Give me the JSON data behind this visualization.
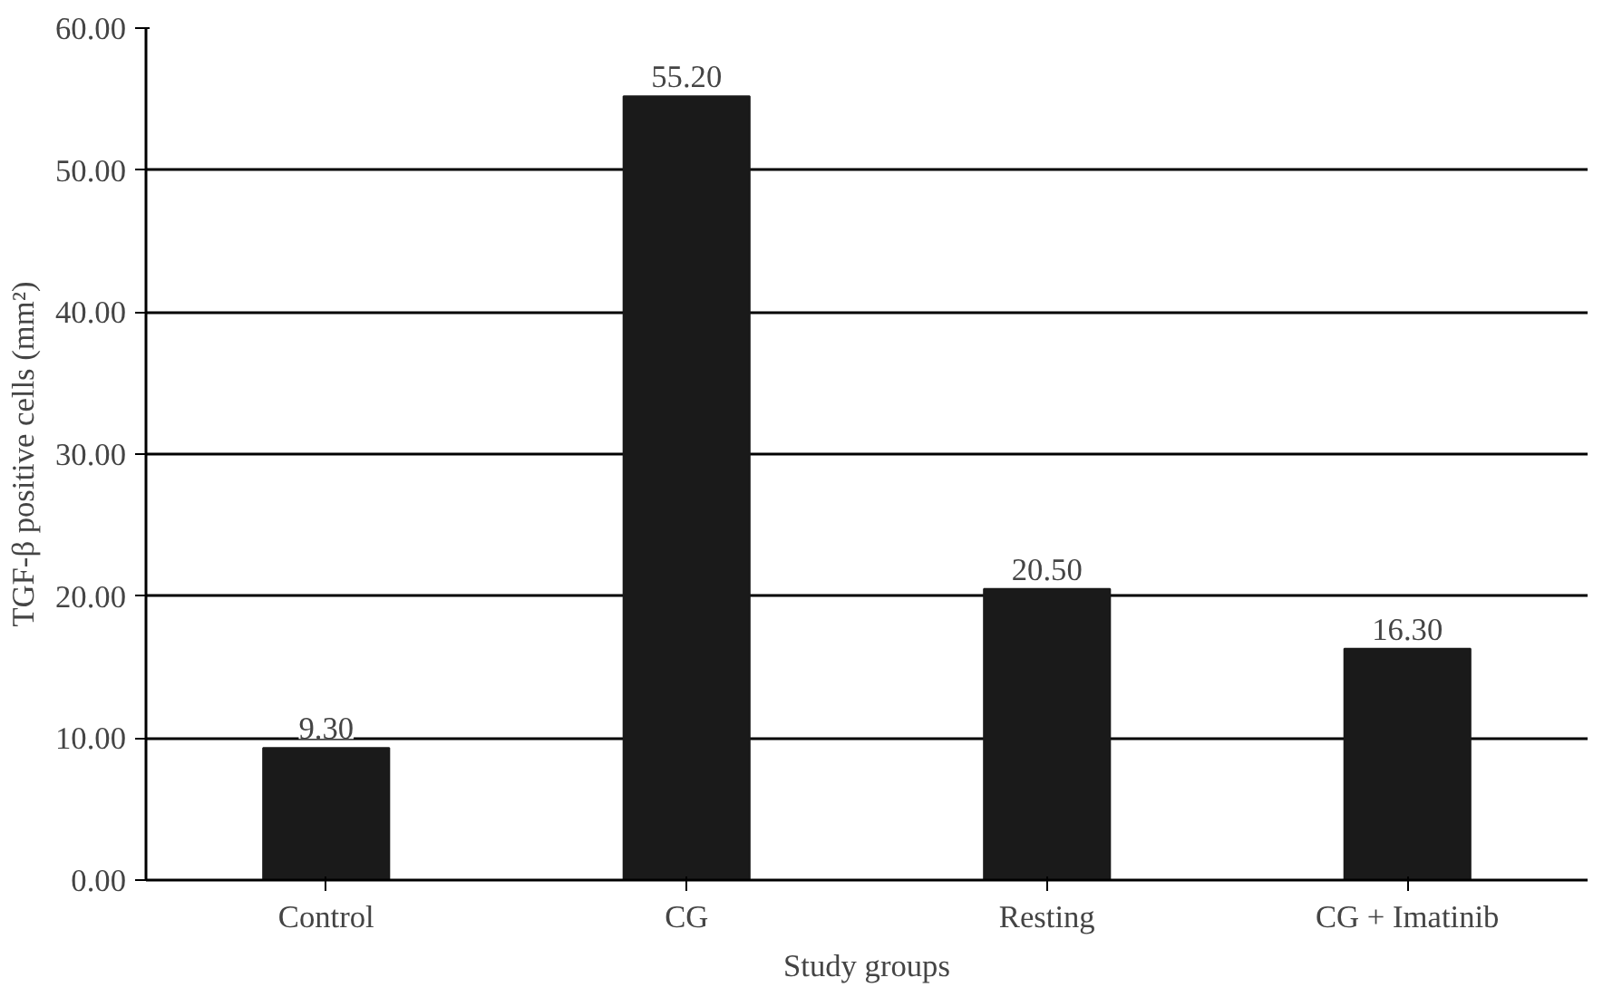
{
  "chart_data": {
    "type": "bar",
    "xlabel": "Study groups",
    "ylabel": "TGF-β positive cells (mm²)",
    "categories": [
      "Control",
      "CG",
      "Resting",
      "CG + Imatinib"
    ],
    "values": [
      9.3,
      55.2,
      20.5,
      16.3
    ],
    "value_labels": [
      "9.30",
      "55.20",
      "20.50",
      "16.30"
    ],
    "color": "#1a1a1a",
    "ylim": [
      0,
      60
    ],
    "yticks": [
      {
        "value": 0,
        "label": "0.00"
      },
      {
        "value": 10,
        "label": "10.00"
      },
      {
        "value": 20,
        "label": "20.00"
      },
      {
        "value": 30,
        "label": "30.00"
      },
      {
        "value": 40,
        "label": "40.00"
      },
      {
        "value": 50,
        "label": "50.00"
      },
      {
        "value": 60,
        "label": "60.00"
      }
    ],
    "grid": "y"
  }
}
